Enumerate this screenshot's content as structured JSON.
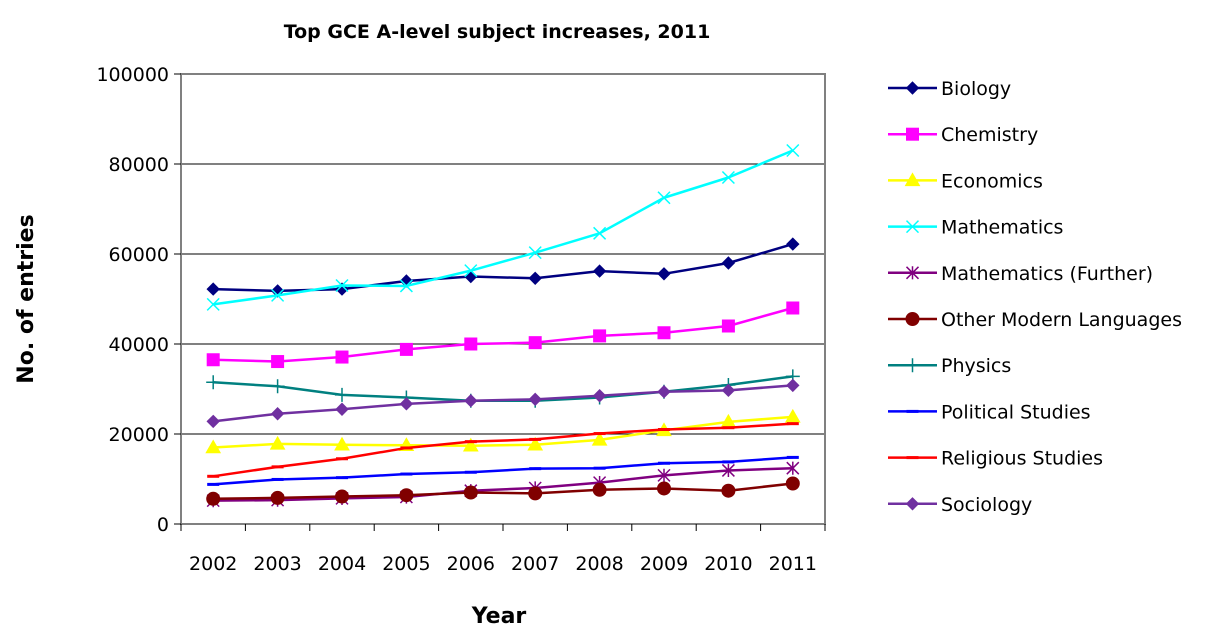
{
  "chart_data": {
    "type": "line",
    "title": "Top GCE A-level subject increases, 2011",
    "xlabel": "Year",
    "ylabel": "No. of entries",
    "ylim": [
      0,
      100000
    ],
    "yticks": [
      "0",
      "20000",
      "40000",
      "60000",
      "80000",
      "100000"
    ],
    "categories": [
      "2002",
      "2003",
      "2004",
      "2005",
      "2006",
      "2007",
      "2008",
      "2009",
      "2010",
      "2011"
    ],
    "grid": true,
    "legend_position": "right",
    "series": [
      {
        "name": "Biology",
        "color": "#000080",
        "marker": "diamond",
        "values": [
          52200,
          51800,
          52200,
          54000,
          55000,
          54600,
          56200,
          55600,
          58000,
          62200
        ]
      },
      {
        "name": "Chemistry",
        "color": "#FF00FF",
        "marker": "square",
        "values": [
          36500,
          36100,
          37100,
          38800,
          40000,
          40300,
          41800,
          42500,
          44000,
          48000
        ]
      },
      {
        "name": "Economics",
        "color": "#FFFF00",
        "marker": "triangle",
        "values": [
          17000,
          17800,
          17600,
          17500,
          17400,
          17600,
          18700,
          20800,
          22700,
          23800
        ]
      },
      {
        "name": "Mathematics",
        "color": "#00FFFF",
        "marker": "x",
        "values": [
          48800,
          50800,
          53000,
          52900,
          56300,
          60300,
          64600,
          72500,
          77000,
          83000
        ]
      },
      {
        "name": "Mathematics (Further)",
        "color": "#800080",
        "marker": "star",
        "values": [
          5200,
          5300,
          5700,
          6000,
          7400,
          8000,
          9200,
          10800,
          11900,
          12400
        ]
      },
      {
        "name": "Other Modern Languages",
        "color": "#800000",
        "marker": "circle",
        "values": [
          5600,
          5800,
          6100,
          6400,
          7000,
          6800,
          7600,
          7900,
          7400,
          9000
        ]
      },
      {
        "name": "Physics",
        "color": "#008080",
        "marker": "plus",
        "values": [
          31500,
          30600,
          28700,
          28100,
          27400,
          27400,
          28100,
          29400,
          30900,
          32800
        ]
      },
      {
        "name": "Political Studies",
        "color": "#0000FF",
        "marker": "dash",
        "values": [
          8800,
          9900,
          10300,
          11100,
          11500,
          12300,
          12400,
          13500,
          13800,
          14800
        ]
      },
      {
        "name": "Religious Studies",
        "color": "#FF0000",
        "marker": "dash",
        "values": [
          10600,
          12700,
          14500,
          16900,
          18300,
          18800,
          20100,
          21000,
          21400,
          22300
        ]
      },
      {
        "name": "Sociology",
        "color": "#7030A0",
        "marker": "diamond",
        "values": [
          22800,
          24500,
          25500,
          26700,
          27400,
          27700,
          28500,
          29400,
          29700,
          30800
        ]
      }
    ]
  }
}
